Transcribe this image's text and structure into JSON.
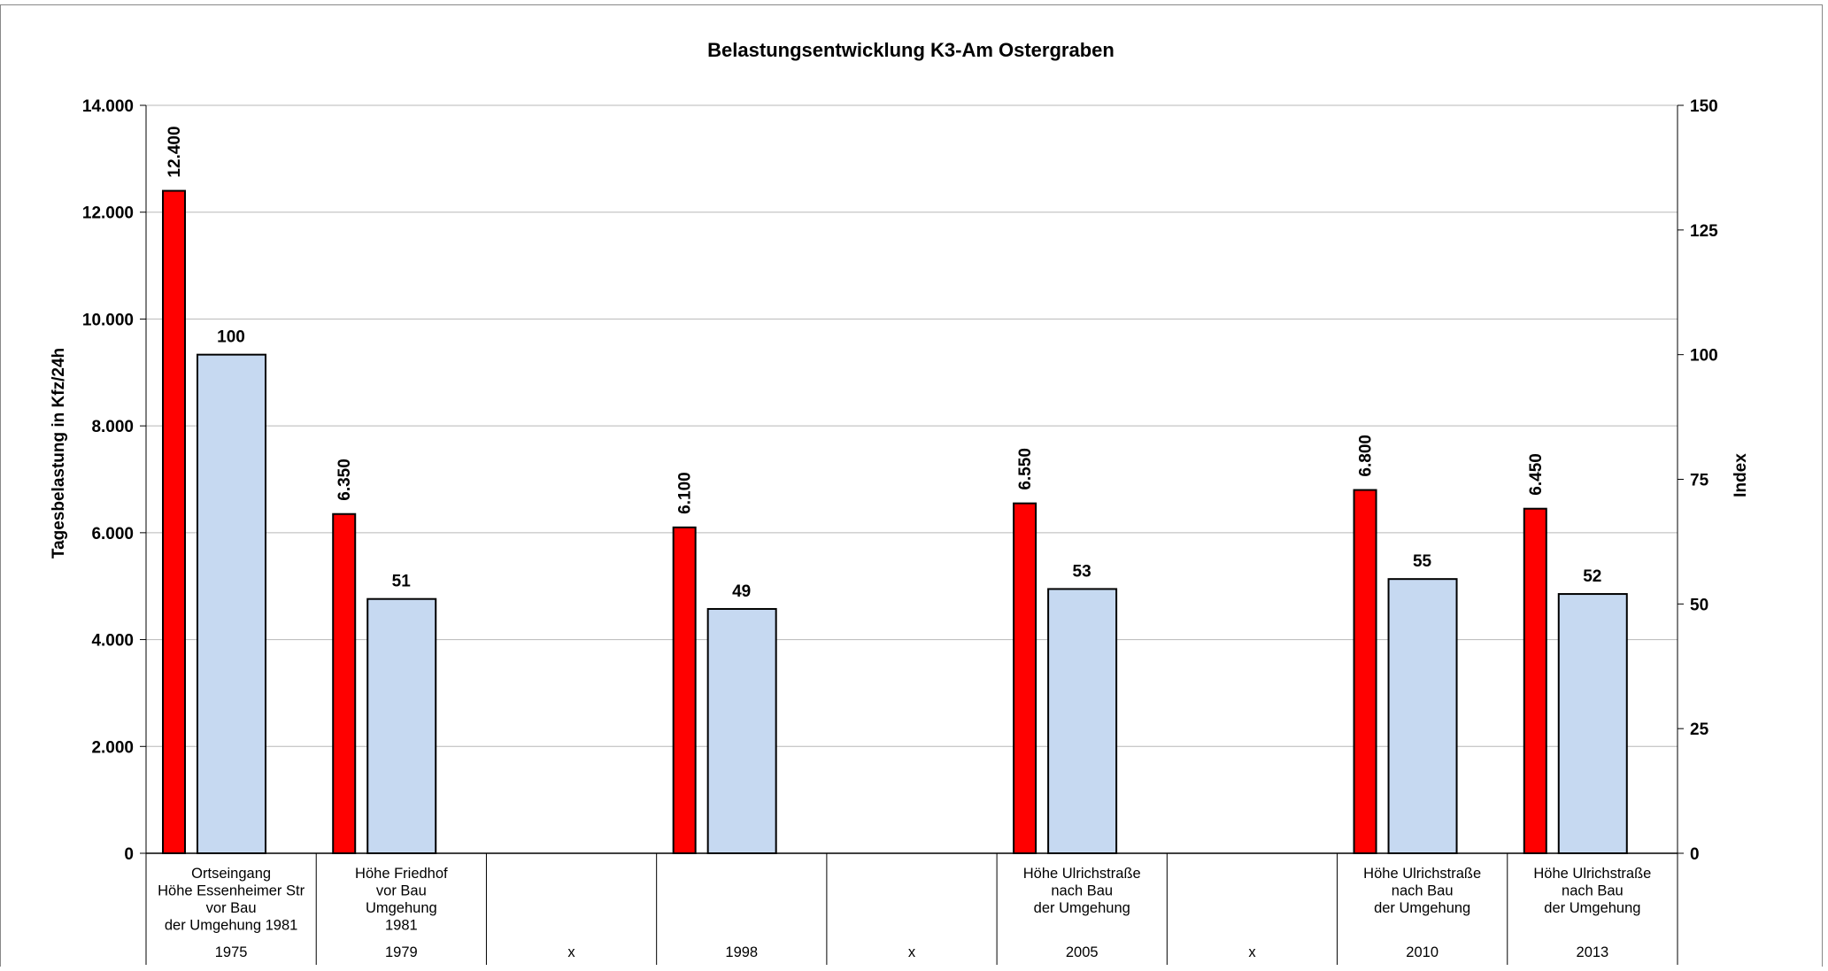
{
  "chart_data": {
    "type": "bar",
    "title": "Belastungsentwicklung K3-Am Ostergraben",
    "ylabel": "Tagesbelastung in Kfz/24h",
    "y2label": "Index",
    "ylim": [
      0,
      14000
    ],
    "y2lim": [
      0,
      150
    ],
    "y_ticks": [
      "0",
      "2.000",
      "4.000",
      "6.000",
      "8.000",
      "10.000",
      "12.000",
      "14.000"
    ],
    "y2_ticks": [
      "0",
      "25",
      "50",
      "75",
      "100",
      "125",
      "150"
    ],
    "grid": true,
    "categories": [
      {
        "location": [
          "Ortseingang",
          "Höhe Essenheimer Str",
          "vor Bau",
          "der Umgehung 1981"
        ],
        "year": "1975"
      },
      {
        "location": [
          "Höhe Friedhof",
          "vor Bau",
          "Umgehung",
          "1981"
        ],
        "year": "1979"
      },
      {
        "location": [],
        "year": "x"
      },
      {
        "location": [],
        "year": "1998"
      },
      {
        "location": [],
        "year": "x"
      },
      {
        "location": [
          "Höhe Ulrichstraße",
          "nach Bau",
          "der Umgehung"
        ],
        "year": "2005"
      },
      {
        "location": [],
        "year": "x"
      },
      {
        "location": [
          "Höhe Ulrichstraße",
          "nach Bau",
          "der Umgehung"
        ],
        "year": "2010"
      },
      {
        "location": [
          "Höhe Ulrichstraße",
          "nach Bau",
          "der Umgehung"
        ],
        "year": "2013"
      }
    ],
    "series": [
      {
        "axis": "left",
        "color": "#ff0000",
        "values": [
          12400,
          6350,
          null,
          6100,
          null,
          6550,
          null,
          6800,
          6450
        ],
        "labels": [
          "12.400",
          "6.350",
          "",
          "6.100",
          "",
          "6.550",
          "",
          "6.800",
          "6.450"
        ]
      },
      {
        "axis": "right",
        "color": "#c6d9f1",
        "values": [
          100,
          51,
          null,
          49,
          null,
          53,
          null,
          55,
          52
        ],
        "labels": [
          "100",
          "51",
          "",
          "49",
          "",
          "53",
          "",
          "55",
          "52"
        ]
      }
    ]
  }
}
